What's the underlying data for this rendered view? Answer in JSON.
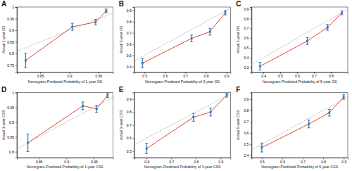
{
  "chart_data": [
    {
      "type": "line",
      "panel": "A",
      "xlabel": "Nomogram-Predicted Probability of 1-year OS",
      "ylabel": "Actual 1-year OS",
      "x": [
        0.825,
        0.905,
        0.945,
        0.963
      ],
      "values": [
        0.77,
        0.915,
        0.935,
        0.983
      ],
      "errors": [
        0.03,
        0.015,
        0.012,
        0.008
      ],
      "color": "#e03020",
      "xlim": [
        0.81,
        0.975
      ],
      "ylim": [
        0.72,
        1.0
      ],
      "xticks": [
        0.85,
        0.9,
        0.95
      ],
      "yticks": [
        0.75,
        0.8,
        0.85,
        0.9,
        0.95,
        1
      ]
    },
    {
      "type": "line",
      "panel": "B",
      "xlabel": "Nomogram-Predicted Probability of 3-year OS",
      "ylabel": "Actual 3-year OS",
      "x": [
        0.49,
        0.73,
        0.82,
        0.895
      ],
      "values": [
        0.43,
        0.65,
        0.71,
        0.88
      ],
      "errors": [
        0.04,
        0.03,
        0.03,
        0.02
      ],
      "color": "#e03020",
      "xlim": [
        0.45,
        0.92
      ],
      "ylim": [
        0.35,
        0.93
      ],
      "xticks": [
        0.5,
        0.6,
        0.7,
        0.8,
        0.9
      ],
      "yticks": [
        0.4,
        0.5,
        0.6,
        0.7,
        0.8,
        0.9
      ]
    },
    {
      "type": "line",
      "panel": "C",
      "xlabel": "Nomogram-Predicted Probability of 5-year OS",
      "ylabel": "Actual 5-year OS",
      "x": [
        0.38,
        0.66,
        0.78,
        0.865
      ],
      "values": [
        0.31,
        0.57,
        0.71,
        0.86
      ],
      "errors": [
        0.04,
        0.035,
        0.03,
        0.02
      ],
      "color": "#e03020",
      "xlim": [
        0.33,
        0.9
      ],
      "ylim": [
        0.25,
        0.92
      ],
      "xticks": [
        0.4,
        0.5,
        0.6,
        0.7,
        0.8
      ],
      "yticks": [
        0.3,
        0.4,
        0.5,
        0.6,
        0.7,
        0.8,
        0.9
      ]
    },
    {
      "type": "line",
      "panel": "D",
      "xlabel": "Nomogram-Predicted Probability of 1-year CSS",
      "ylabel": "Actual 1-year CSS",
      "x": [
        0.83,
        0.93,
        0.955,
        0.975
      ],
      "values": [
        0.83,
        0.955,
        0.945,
        0.99
      ],
      "errors": [
        0.03,
        0.013,
        0.012,
        0.007
      ],
      "color": "#e03020",
      "xlim": [
        0.81,
        0.985
      ],
      "ylim": [
        0.78,
        1.0
      ],
      "xticks": [
        0.85,
        0.9,
        0.95
      ],
      "yticks": [
        0.8,
        0.85,
        0.9,
        0.95,
        1
      ]
    },
    {
      "type": "line",
      "panel": "E",
      "xlabel": "Nomogram-Predicted Probability of 3-year CSS",
      "ylabel": "Actual 3-year CSS",
      "x": [
        0.6,
        0.79,
        0.86,
        0.925
      ],
      "values": [
        0.52,
        0.76,
        0.8,
        0.93
      ],
      "errors": [
        0.04,
        0.03,
        0.03,
        0.015
      ],
      "color": "#e03020",
      "xlim": [
        0.55,
        0.94
      ],
      "ylim": [
        0.45,
        0.95
      ],
      "xticks": [
        0.6,
        0.7,
        0.8,
        0.9
      ],
      "yticks": [
        0.5,
        0.6,
        0.7,
        0.8,
        0.9
      ]
    },
    {
      "type": "line",
      "panel": "F",
      "xlabel": "Nomogram-Predicted Probability of 5-year CSS",
      "ylabel": "Actual 5-year CSS",
      "x": [
        0.5,
        0.73,
        0.83,
        0.9
      ],
      "values": [
        0.47,
        0.68,
        0.78,
        0.92
      ],
      "errors": [
        0.04,
        0.035,
        0.03,
        0.02
      ],
      "color": "#e03020",
      "xlim": [
        0.45,
        0.92
      ],
      "ylim": [
        0.38,
        0.96
      ],
      "xticks": [
        0.5,
        0.6,
        0.7,
        0.8,
        0.9
      ],
      "yticks": [
        0.4,
        0.5,
        0.6,
        0.7,
        0.8,
        0.9
      ]
    }
  ]
}
